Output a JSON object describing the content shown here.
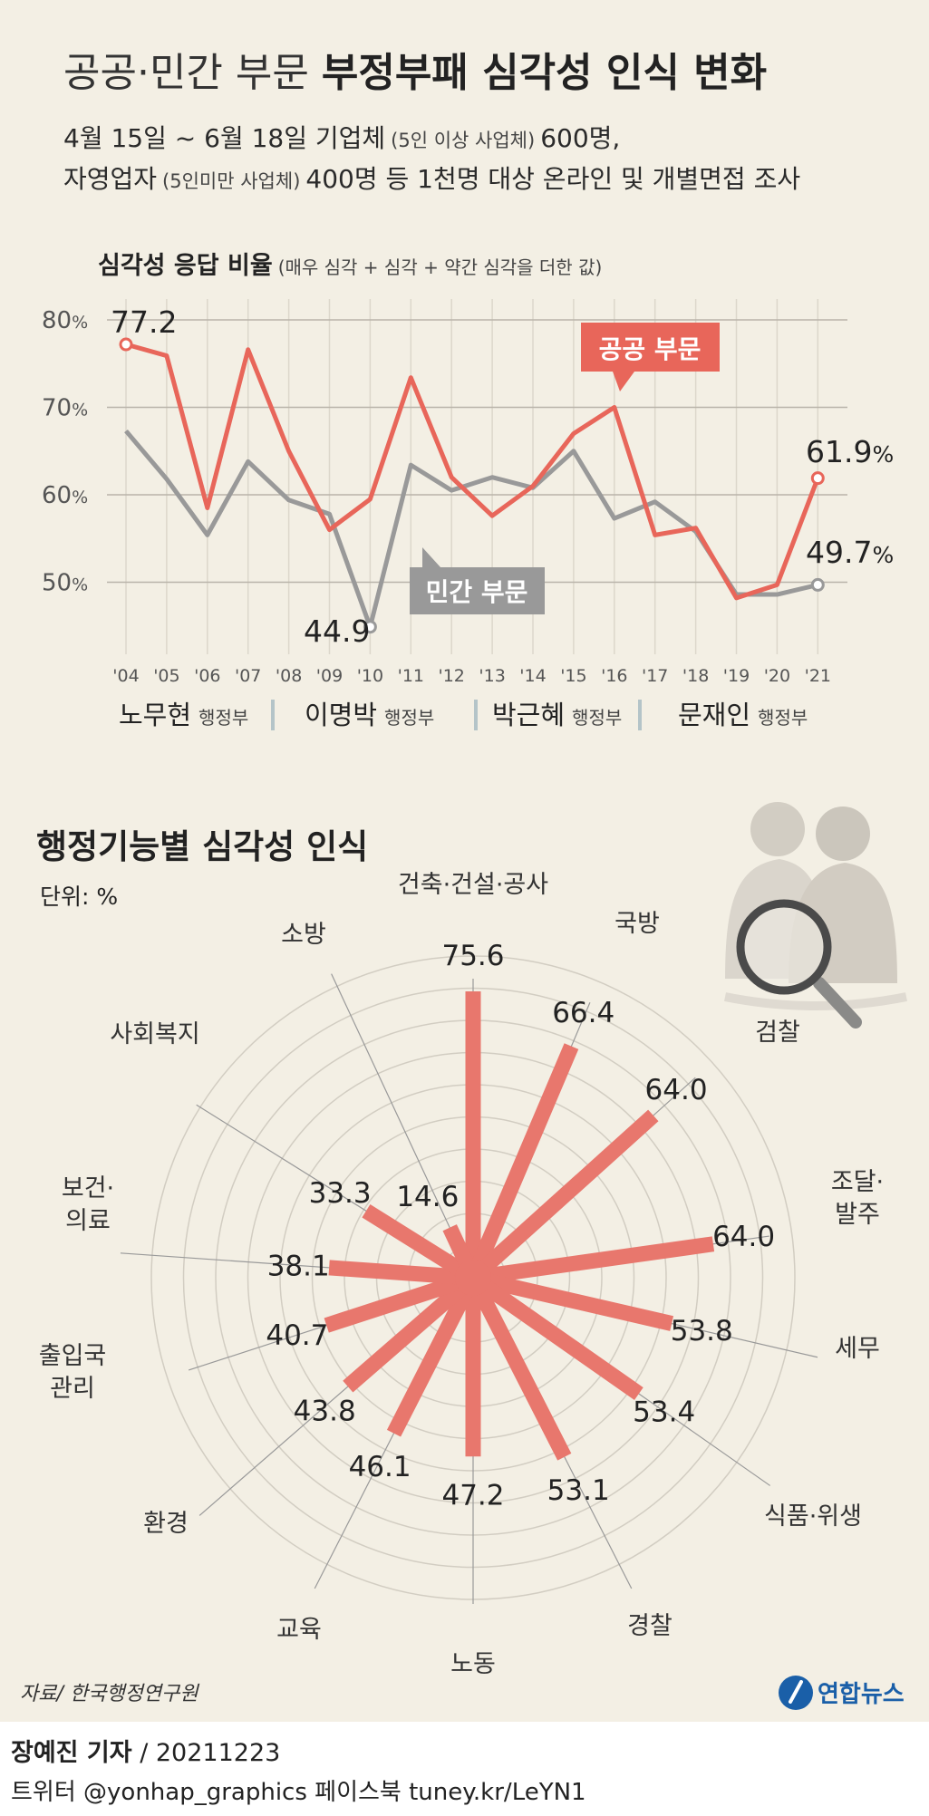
{
  "header": {
    "title_light": "공공·민간 부문",
    "title_bold": "부정부패 심각성 인식 변화",
    "subtitle_line1_a": "4월 15일 ~ 6월 18일 기업체",
    "subtitle_line1_b": "(5인 이상 사업체)",
    "subtitle_line1_c": "600명,",
    "subtitle_line2_a": "자영업자",
    "subtitle_line2_b": "(5인미만 사업체)",
    "subtitle_line2_c": "400명 등 1천명 대상 온라인 및 개별면접 조사"
  },
  "line_chart_header": {
    "title": "심각성 응답 비율",
    "note": "(매우 심각 + 심각 + 약간 심각을 더한 값)"
  },
  "governments": [
    {
      "name": "노무현",
      "suffix": "행정부"
    },
    {
      "name": "이명박",
      "suffix": "행정부"
    },
    {
      "name": "박근혜",
      "suffix": "행정부"
    },
    {
      "name": "문재인",
      "suffix": "행정부"
    }
  ],
  "radar_header": {
    "title": "행정기능별 심각성 인식",
    "unit": "단위: %"
  },
  "source": "자료/ 한국행정연구원",
  "logo_text": "연합뉴스",
  "footer": {
    "byline_name": "장예진 기자",
    "byline_date": "/ 20211223",
    "social": "트위터 @yonhap_graphics  페이스북 tuney.kr/LeYN1"
  },
  "chart_data": [
    {
      "type": "line",
      "title": "심각성 응답 비율",
      "x": [
        "'04",
        "'05",
        "'06",
        "'07",
        "'08",
        "'09",
        "'10",
        "'11",
        "'12",
        "'13",
        "'14",
        "'15",
        "'16",
        "'17",
        "'18",
        "'19",
        "'20",
        "'21"
      ],
      "ylim": [
        40,
        80
      ],
      "yticks": [
        "80%",
        "70%",
        "60%",
        "50%"
      ],
      "ytick_values": [
        80,
        70,
        60,
        50
      ],
      "grid": true,
      "series": [
        {
          "name": "공공 부문",
          "color": "#e8665a",
          "values": [
            77.2,
            75.9,
            58.5,
            76.6,
            65.0,
            56.0,
            59.5,
            73.4,
            62.0,
            57.6,
            61.0,
            67.0,
            70.0,
            55.4,
            56.2,
            48.2,
            49.7,
            61.9
          ],
          "labels": [
            {
              "index": 0,
              "text": "77.2"
            },
            {
              "index": 17,
              "text": "61.9",
              "unit": "%"
            }
          ]
        },
        {
          "name": "민간 부문",
          "color": "#999999",
          "values": [
            67.3,
            61.8,
            55.4,
            63.8,
            59.4,
            57.8,
            44.9,
            63.4,
            60.5,
            62.0,
            60.8,
            65.0,
            57.3,
            59.2,
            55.8,
            48.6,
            48.6,
            49.7
          ],
          "labels": [
            {
              "index": 6,
              "text": "44.9"
            },
            {
              "index": 17,
              "text": "49.7",
              "unit": "%"
            }
          ]
        }
      ]
    },
    {
      "type": "radial_bar",
      "title": "행정기능별 심각성 인식",
      "unit": "%",
      "color": "#e8776d",
      "ring_count": 10,
      "categories": [
        {
          "name": "건축·건설·공사",
          "value": 75.6,
          "label": "75.6"
        },
        {
          "name": "국방",
          "value": 66.4,
          "label": "66.4"
        },
        {
          "name": "검찰",
          "value": 64.0,
          "label": "64.0"
        },
        {
          "name": "조달·발주",
          "value": 64.0,
          "label": "64.0"
        },
        {
          "name": "세무",
          "value": 53.8,
          "label": "53.8"
        },
        {
          "name": "식품·위생",
          "value": 53.4,
          "label": "53.4"
        },
        {
          "name": "경찰",
          "value": 53.1,
          "label": "53.1"
        },
        {
          "name": "노동",
          "value": 47.2,
          "label": "47.2"
        },
        {
          "name": "교육",
          "value": 46.1,
          "label": "46.1"
        },
        {
          "name": "환경",
          "value": 43.8,
          "label": "43.8"
        },
        {
          "name": "출입국관리",
          "value": 40.7,
          "label": "40.7"
        },
        {
          "name": "보건·의료",
          "value": 38.1,
          "label": "38.1"
        },
        {
          "name": "사회복지",
          "value": 33.3,
          "label": "33.3"
        },
        {
          "name": "소방",
          "value": 14.6,
          "label": "14.6"
        }
      ]
    }
  ]
}
